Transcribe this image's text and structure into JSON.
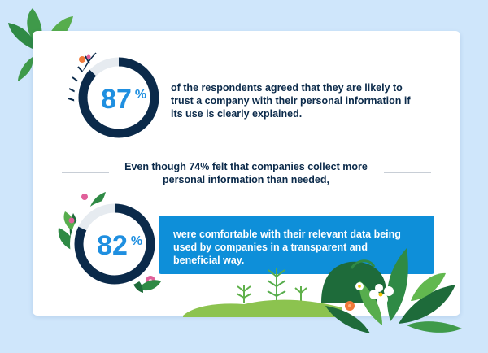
{
  "stats": [
    {
      "value": 87,
      "number": "87",
      "symbol": "%",
      "text": "of the respondents agreed that they are likely to trust a company with their personal information if its use is clearly explained."
    },
    {
      "value": 82,
      "number": "82",
      "symbol": "%",
      "text": "were comfortable with their relevant data being used by companies in a transparent and beneficial way."
    }
  ],
  "middle": {
    "prefix": "Even though ",
    "highlight": "74%",
    "suffix": " felt that companies collect more personal information than needed,"
  },
  "colors": {
    "background": "#cfe6fb",
    "ring": "#0b2a4a",
    "ring_track": "#e6ebf0",
    "percent_text": "#1f8fe0",
    "banner": "#0e8fd9",
    "foliage_dark": "#1e6b3a",
    "foliage_light": "#5fb04a",
    "flower_pink": "#e0609a",
    "flower_orange": "#f07a3a"
  }
}
